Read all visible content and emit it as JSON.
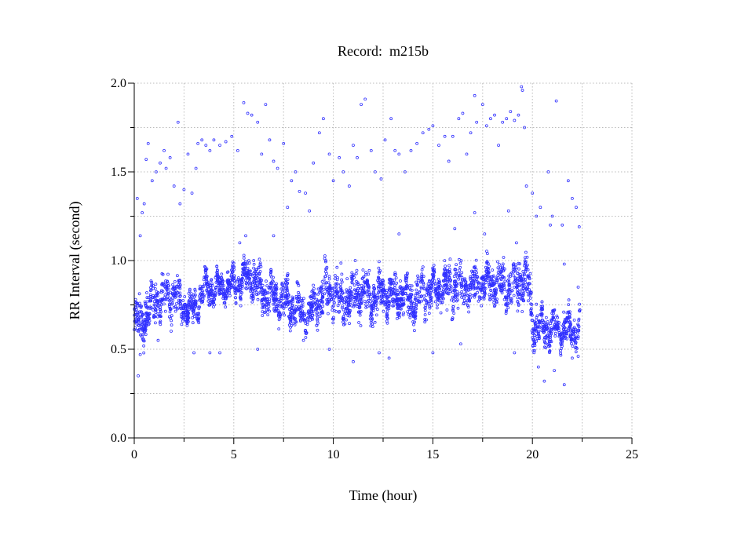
{
  "chart_data": {
    "type": "scatter",
    "title": "Record:  m215b",
    "xlabel": "Time (hour)",
    "ylabel": "RR Interval (second)",
    "xlim": [
      0,
      25
    ],
    "ylim": [
      0,
      2.0
    ],
    "x_ticks": [
      0,
      5,
      10,
      15,
      20,
      25
    ],
    "x_tick_labels": [
      "0",
      "5",
      "10",
      "15",
      "20",
      "25"
    ],
    "y_ticks": [
      0,
      0.5,
      1.0,
      1.5,
      2.0
    ],
    "y_tick_labels": [
      "0.0",
      "0.5",
      "1.0",
      "1.5",
      "2.0"
    ],
    "x_minor_step": 2.5,
    "y_minor_step": 0.25,
    "grid": true,
    "marker_color": "#2f2fff",
    "band_summary": {
      "description_units": "hour, second",
      "x": [
        0,
        0.5,
        1,
        1.5,
        2,
        2.5,
        3,
        3.5,
        4,
        4.5,
        5,
        5.5,
        6,
        6.5,
        7,
        7.5,
        8,
        8.5,
        9,
        9.5,
        10,
        10.5,
        11,
        11.5,
        12,
        12.5,
        13,
        13.5,
        14,
        14.5,
        15,
        15.5,
        16,
        16.5,
        17,
        17.5,
        18,
        18.5,
        19,
        19.5,
        19.8,
        20,
        20.5,
        21,
        21.5,
        22,
        22.4
      ],
      "center": [
        0.64,
        0.68,
        0.76,
        0.78,
        0.8,
        0.74,
        0.72,
        0.83,
        0.84,
        0.85,
        0.86,
        0.9,
        0.88,
        0.82,
        0.8,
        0.76,
        0.74,
        0.7,
        0.72,
        0.84,
        0.82,
        0.76,
        0.8,
        0.82,
        0.78,
        0.82,
        0.8,
        0.8,
        0.76,
        0.82,
        0.84,
        0.84,
        0.86,
        0.84,
        0.86,
        0.88,
        0.88,
        0.86,
        0.86,
        0.9,
        0.88,
        0.64,
        0.62,
        0.62,
        0.61,
        0.6,
        0.62
      ],
      "spread": [
        0.1,
        0.12,
        0.12,
        0.12,
        0.1,
        0.08,
        0.08,
        0.08,
        0.07,
        0.07,
        0.07,
        0.08,
        0.1,
        0.1,
        0.1,
        0.1,
        0.1,
        0.09,
        0.1,
        0.12,
        0.12,
        0.12,
        0.12,
        0.1,
        0.1,
        0.1,
        0.1,
        0.1,
        0.1,
        0.1,
        0.1,
        0.1,
        0.12,
        0.1,
        0.1,
        0.1,
        0.1,
        0.1,
        0.12,
        0.12,
        0.12,
        0.1,
        0.1,
        0.09,
        0.08,
        0.08,
        0.08
      ]
    },
    "outliers": [
      [
        0.15,
        1.35
      ],
      [
        0.3,
        1.14
      ],
      [
        0.4,
        1.27
      ],
      [
        0.5,
        1.32
      ],
      [
        0.6,
        1.57
      ],
      [
        0.7,
        1.66
      ],
      [
        0.9,
        1.45
      ],
      [
        1.1,
        1.5
      ],
      [
        1.3,
        1.55
      ],
      [
        1.5,
        1.62
      ],
      [
        1.6,
        1.52
      ],
      [
        1.8,
        1.58
      ],
      [
        2.0,
        1.42
      ],
      [
        2.2,
        1.78
      ],
      [
        2.3,
        1.32
      ],
      [
        2.5,
        1.4
      ],
      [
        2.7,
        1.6
      ],
      [
        2.9,
        1.38
      ],
      [
        3.1,
        1.52
      ],
      [
        3.2,
        1.66
      ],
      [
        3.4,
        1.68
      ],
      [
        3.6,
        1.65
      ],
      [
        3.8,
        1.62
      ],
      [
        4.0,
        1.68
      ],
      [
        4.3,
        1.65
      ],
      [
        4.6,
        1.67
      ],
      [
        4.9,
        1.7
      ],
      [
        5.2,
        1.62
      ],
      [
        5.5,
        1.89
      ],
      [
        5.7,
        1.83
      ],
      [
        5.9,
        1.82
      ],
      [
        6.2,
        1.78
      ],
      [
        6.4,
        1.6
      ],
      [
        6.6,
        1.88
      ],
      [
        6.8,
        1.68
      ],
      [
        7.0,
        1.56
      ],
      [
        7.2,
        1.52
      ],
      [
        7.5,
        1.66
      ],
      [
        7.7,
        1.3
      ],
      [
        7.9,
        1.45
      ],
      [
        8.1,
        1.5
      ],
      [
        8.3,
        1.39
      ],
      [
        8.6,
        1.38
      ],
      [
        8.8,
        1.28
      ],
      [
        9.0,
        1.55
      ],
      [
        9.3,
        1.72
      ],
      [
        9.5,
        1.8
      ],
      [
        9.8,
        1.6
      ],
      [
        10.0,
        1.45
      ],
      [
        10.3,
        1.58
      ],
      [
        10.5,
        1.5
      ],
      [
        10.8,
        1.42
      ],
      [
        11.0,
        1.65
      ],
      [
        11.2,
        1.58
      ],
      [
        11.4,
        1.88
      ],
      [
        11.6,
        1.91
      ],
      [
        11.9,
        1.62
      ],
      [
        12.1,
        1.5
      ],
      [
        12.4,
        1.46
      ],
      [
        12.6,
        1.68
      ],
      [
        12.9,
        1.8
      ],
      [
        13.1,
        1.62
      ],
      [
        13.3,
        1.6
      ],
      [
        13.6,
        1.5
      ],
      [
        13.9,
        1.62
      ],
      [
        14.2,
        1.66
      ],
      [
        14.5,
        1.72
      ],
      [
        14.8,
        1.74
      ],
      [
        15.0,
        1.76
      ],
      [
        15.3,
        1.65
      ],
      [
        15.6,
        1.7
      ],
      [
        15.8,
        1.56
      ],
      [
        16.0,
        1.7
      ],
      [
        16.3,
        1.8
      ],
      [
        16.5,
        1.83
      ],
      [
        16.7,
        1.6
      ],
      [
        16.9,
        1.72
      ],
      [
        17.1,
        1.93
      ],
      [
        17.2,
        1.78
      ],
      [
        17.5,
        1.88
      ],
      [
        17.7,
        1.76
      ],
      [
        17.9,
        1.8
      ],
      [
        18.1,
        1.82
      ],
      [
        18.3,
        1.65
      ],
      [
        18.5,
        1.78
      ],
      [
        18.7,
        1.8
      ],
      [
        18.9,
        1.84
      ],
      [
        19.1,
        1.79
      ],
      [
        19.3,
        1.82
      ],
      [
        19.45,
        1.98
      ],
      [
        19.5,
        1.96
      ],
      [
        19.6,
        1.75
      ],
      [
        19.7,
        1.42
      ],
      [
        20.0,
        1.38
      ],
      [
        20.2,
        1.25
      ],
      [
        20.4,
        1.3
      ],
      [
        20.8,
        1.5
      ],
      [
        21.0,
        1.25
      ],
      [
        21.2,
        1.9
      ],
      [
        21.5,
        1.2
      ],
      [
        21.8,
        1.45
      ],
      [
        22.0,
        1.35
      ],
      [
        22.2,
        1.3
      ],
      [
        22.35,
        1.19
      ],
      [
        0.2,
        0.35
      ],
      [
        0.3,
        0.47
      ],
      [
        1.2,
        0.55
      ],
      [
        3.0,
        0.48
      ],
      [
        3.8,
        0.48
      ],
      [
        4.3,
        0.48
      ],
      [
        6.2,
        0.5
      ],
      [
        8.5,
        0.55
      ],
      [
        9.8,
        0.5
      ],
      [
        11.0,
        0.43
      ],
      [
        12.3,
        0.48
      ],
      [
        12.8,
        0.45
      ],
      [
        15.0,
        0.48
      ],
      [
        16.4,
        0.53
      ],
      [
        19.1,
        0.48
      ],
      [
        20.3,
        0.4
      ],
      [
        20.6,
        0.32
      ],
      [
        21.1,
        0.38
      ],
      [
        21.6,
        0.3
      ],
      [
        22.0,
        0.45
      ],
      [
        22.3,
        0.46
      ],
      [
        5.3,
        1.1
      ],
      [
        5.6,
        1.14
      ],
      [
        6.0,
        1.0
      ],
      [
        7.0,
        1.14
      ],
      [
        11.1,
        1.0
      ],
      [
        13.3,
        1.15
      ],
      [
        16.1,
        1.18
      ],
      [
        17.1,
        1.27
      ],
      [
        17.6,
        1.15
      ],
      [
        18.8,
        1.28
      ],
      [
        19.2,
        1.1
      ],
      [
        20.9,
        1.2
      ],
      [
        21.6,
        0.98
      ],
      [
        22.3,
        0.85
      ]
    ]
  }
}
